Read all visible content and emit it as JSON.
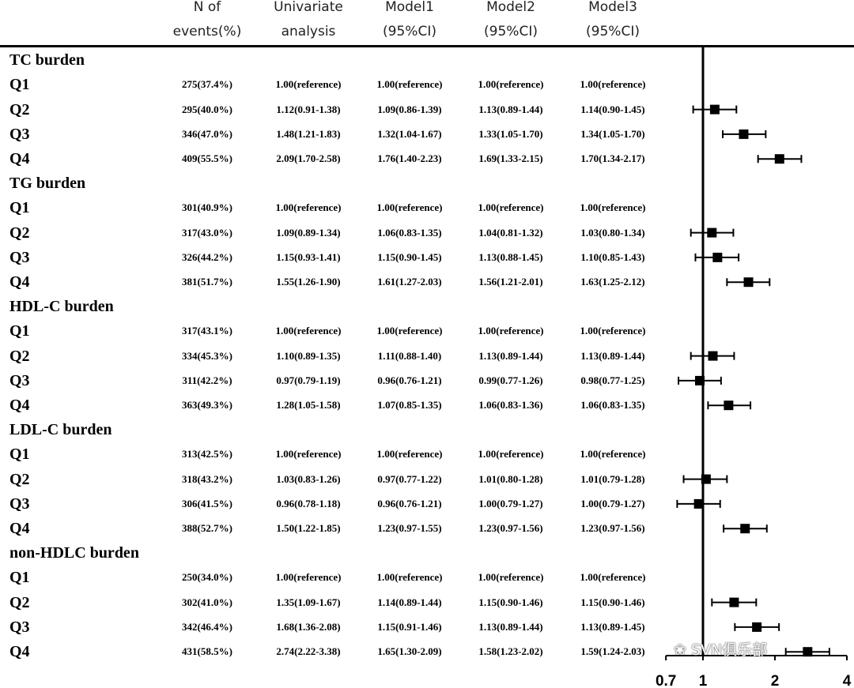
{
  "headers": {
    "events": [
      "N of",
      "events(%)"
    ],
    "univariate": [
      "Univariate",
      "analysis"
    ],
    "model1": [
      "Model1",
      "(95%CI)"
    ],
    "model2": [
      "Model2",
      "(95%CI)"
    ],
    "model3": [
      "Model3",
      "(95%CI)"
    ]
  },
  "sections": [
    {
      "title": "TC burden",
      "rows": [
        {
          "q": "Q1",
          "events": "275(37.4%)",
          "univariate": "1.00(reference)",
          "model1": "1.00(reference)",
          "model2": "1.00(reference)",
          "model3": "1.00(reference)"
        },
        {
          "q": "Q2",
          "events": "295(40.0%)",
          "univariate": "1.12(0.91-1.38)",
          "model1": "1.09(0.86-1.39)",
          "model2": "1.13(0.89-1.44)",
          "model3": "1.14(0.90-1.45)"
        },
        {
          "q": "Q3",
          "events": "346(47.0%)",
          "univariate": "1.48(1.21-1.83)",
          "model1": "1.32(1.04-1.67)",
          "model2": "1.33(1.05-1.70)",
          "model3": "1.34(1.05-1.70)"
        },
        {
          "q": "Q4",
          "events": "409(55.5%)",
          "univariate": "2.09(1.70-2.58)",
          "model1": "1.76(1.40-2.23)",
          "model2": "1.69(1.33-2.15)",
          "model3": "1.70(1.34-2.17)"
        }
      ]
    },
    {
      "title": "TG burden",
      "rows": [
        {
          "q": "Q1",
          "events": "301(40.9%)",
          "univariate": "1.00(reference)",
          "model1": "1.00(reference)",
          "model2": "1.00(reference)",
          "model3": "1.00(reference)"
        },
        {
          "q": "Q2",
          "events": "317(43.0%)",
          "univariate": "1.09(0.89-1.34)",
          "model1": "1.06(0.83-1.35)",
          "model2": "1.04(0.81-1.32)",
          "model3": "1.03(0.80-1.34)"
        },
        {
          "q": "Q3",
          "events": "326(44.2%)",
          "univariate": "1.15(0.93-1.41)",
          "model1": "1.15(0.90-1.45)",
          "model2": "1.13(0.88-1.45)",
          "model3": "1.10(0.85-1.43)"
        },
        {
          "q": "Q4",
          "events": "381(51.7%)",
          "univariate": "1.55(1.26-1.90)",
          "model1": "1.61(1.27-2.03)",
          "model2": "1.56(1.21-2.01)",
          "model3": "1.63(1.25-2.12)"
        }
      ]
    },
    {
      "title": "HDL-C burden",
      "rows": [
        {
          "q": "Q1",
          "events": "317(43.1%)",
          "univariate": "1.00(reference)",
          "model1": "1.00(reference)",
          "model2": "1.00(reference)",
          "model3": "1.00(reference)"
        },
        {
          "q": "Q2",
          "events": "334(45.3%)",
          "univariate": "1.10(0.89-1.35)",
          "model1": "1.11(0.88-1.40)",
          "model2": "1.13(0.89-1.44)",
          "model3": "1.13(0.89-1.44)"
        },
        {
          "q": "Q3",
          "events": "311(42.2%)",
          "univariate": "0.97(0.79-1.19)",
          "model1": "0.96(0.76-1.21)",
          "model2": "0.99(0.77-1.26)",
          "model3": "0.98(0.77-1.25)"
        },
        {
          "q": "Q4",
          "events": "363(49.3%)",
          "univariate": "1.28(1.05-1.58)",
          "model1": "1.07(0.85-1.35)",
          "model2": "1.06(0.83-1.36)",
          "model3": "1.06(0.83-1.35)"
        }
      ]
    },
    {
      "title": "LDL-C burden",
      "rows": [
        {
          "q": "Q1",
          "events": "313(42.5%)",
          "univariate": "1.00(reference)",
          "model1": "1.00(reference)",
          "model2": "1.00(reference)",
          "model3": "1.00(reference)"
        },
        {
          "q": "Q2",
          "events": "318(43.2%)",
          "univariate": "1.03(0.83-1.26)",
          "model1": "0.97(0.77-1.22)",
          "model2": "1.01(0.80-1.28)",
          "model3": "1.01(0.79-1.28)"
        },
        {
          "q": "Q3",
          "events": "306(41.5%)",
          "univariate": "0.96(0.78-1.18)",
          "model1": "0.96(0.76-1.21)",
          "model2": "1.00(0.79-1.27)",
          "model3": "1.00(0.79-1.27)"
        },
        {
          "q": "Q4",
          "events": "388(52.7%)",
          "univariate": "1.50(1.22-1.85)",
          "model1": "1.23(0.97-1.55)",
          "model2": "1.23(0.97-1.56)",
          "model3": "1.23(0.97-1.56)"
        }
      ]
    },
    {
      "title": "non-HDLC burden",
      "rows": [
        {
          "q": "Q1",
          "events": "250(34.0%)",
          "univariate": "1.00(reference)",
          "model1": "1.00(reference)",
          "model2": "1.00(reference)",
          "model3": "1.00(reference)"
        },
        {
          "q": "Q2",
          "events": "302(41.0%)",
          "univariate": "1.35(1.09-1.67)",
          "model1": "1.14(0.89-1.44)",
          "model2": "1.15(0.90-1.46)",
          "model3": "1.15(0.90-1.46)"
        },
        {
          "q": "Q3",
          "events": "342(46.4%)",
          "univariate": "1.68(1.36-2.08)",
          "model1": "1.15(0.91-1.46)",
          "model2": "1.13(0.89-1.44)",
          "model3": "1.13(0.89-1.45)"
        },
        {
          "q": "Q4",
          "events": "431(58.5%)",
          "univariate": "2.74(2.22-3.38)",
          "model1": "1.65(1.30-2.09)",
          "model2": "1.58(1.23-2.02)",
          "model3": "1.59(1.24-2.03)"
        }
      ]
    }
  ],
  "chart_data": {
    "type": "forest",
    "scale": "log",
    "xlim": [
      0.7,
      4
    ],
    "xticks": [
      0.7,
      1,
      2,
      4
    ],
    "reference_line": 1,
    "points": [
      {
        "group": "TC burden",
        "q": "Q2",
        "or": 1.12,
        "lo": 0.91,
        "hi": 1.38
      },
      {
        "group": "TC burden",
        "q": "Q3",
        "or": 1.48,
        "lo": 1.21,
        "hi": 1.83
      },
      {
        "group": "TC burden",
        "q": "Q4",
        "or": 2.09,
        "lo": 1.7,
        "hi": 2.58
      },
      {
        "group": "TG burden",
        "q": "Q2",
        "or": 1.09,
        "lo": 0.89,
        "hi": 1.34
      },
      {
        "group": "TG burden",
        "q": "Q3",
        "or": 1.15,
        "lo": 0.93,
        "hi": 1.41
      },
      {
        "group": "TG burden",
        "q": "Q4",
        "or": 1.55,
        "lo": 1.26,
        "hi": 1.9
      },
      {
        "group": "HDL-C burden",
        "q": "Q2",
        "or": 1.1,
        "lo": 0.89,
        "hi": 1.35
      },
      {
        "group": "HDL-C burden",
        "q": "Q3",
        "or": 0.97,
        "lo": 0.79,
        "hi": 1.19
      },
      {
        "group": "HDL-C burden",
        "q": "Q4",
        "or": 1.28,
        "lo": 1.05,
        "hi": 1.58
      },
      {
        "group": "LDL-C burden",
        "q": "Q2",
        "or": 1.03,
        "lo": 0.83,
        "hi": 1.26
      },
      {
        "group": "LDL-C burden",
        "q": "Q3",
        "or": 0.96,
        "lo": 0.78,
        "hi": 1.18
      },
      {
        "group": "LDL-C burden",
        "q": "Q4",
        "or": 1.5,
        "lo": 1.22,
        "hi": 1.85
      },
      {
        "group": "non-HDLC burden",
        "q": "Q2",
        "or": 1.35,
        "lo": 1.09,
        "hi": 1.67
      },
      {
        "group": "non-HDLC burden",
        "q": "Q3",
        "or": 1.68,
        "lo": 1.36,
        "hi": 2.08
      },
      {
        "group": "non-HDLC burden",
        "q": "Q4",
        "or": 2.74,
        "lo": 2.22,
        "hi": 3.38
      }
    ]
  },
  "watermark": "SVN俱乐部"
}
